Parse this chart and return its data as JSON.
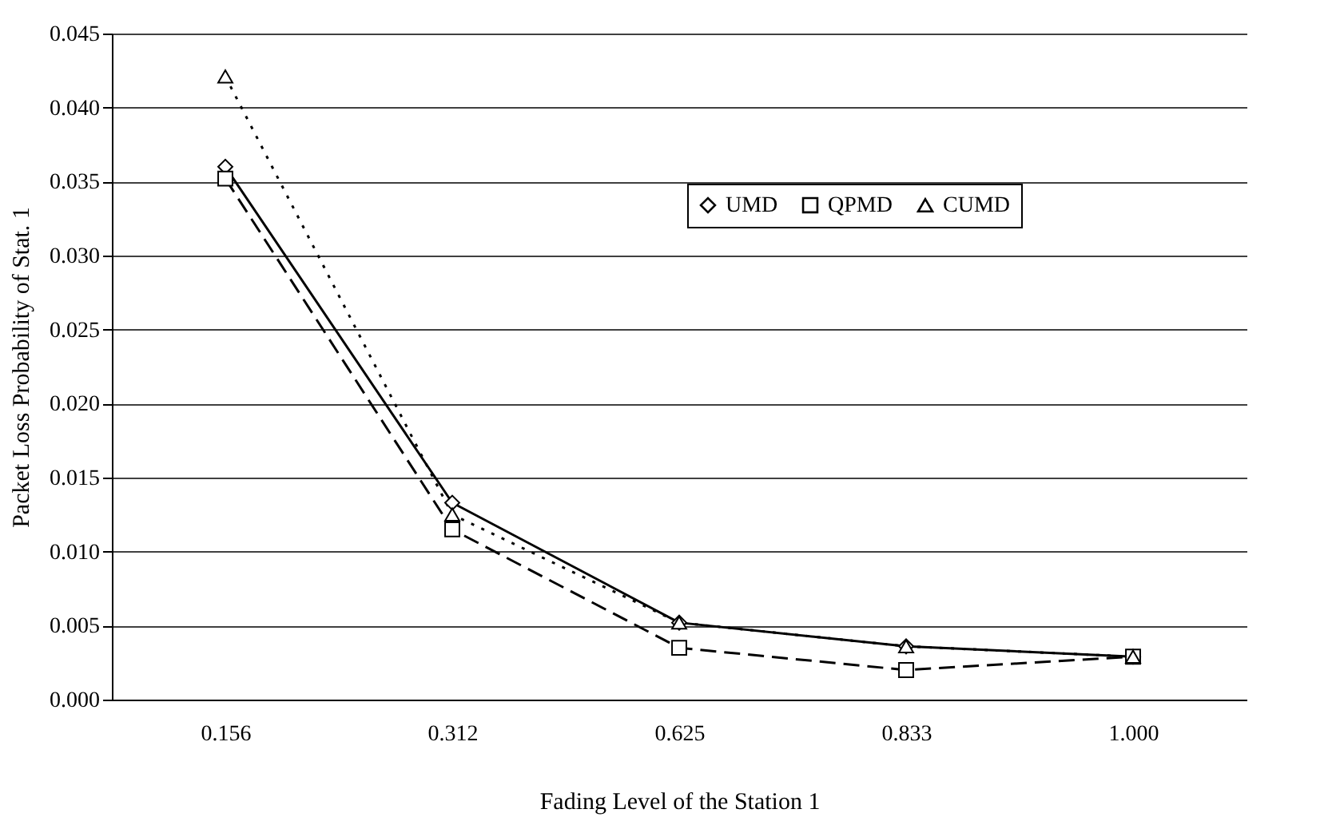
{
  "chart_data": {
    "type": "line",
    "xlabel": "Fading Level of the Station 1",
    "ylabel": "Packet Loss Probability of Stat. 1",
    "categories": [
      "0.156",
      "0.312",
      "0.625",
      "0.833",
      "1.000"
    ],
    "series": [
      {
        "name": "UMD",
        "color": "#000000",
        "marker": "diamond",
        "line_style": "solid",
        "values": [
          0.036,
          0.0133,
          0.0052,
          0.0036,
          0.0029
        ]
      },
      {
        "name": "QPMD",
        "color": "#000000",
        "marker": "square",
        "line_style": "dashed",
        "values": [
          0.0352,
          0.0115,
          0.0035,
          0.002,
          0.0029
        ]
      },
      {
        "name": "CUMD",
        "color": "#000000",
        "marker": "triangle",
        "line_style": "dotted",
        "values": [
          0.0421,
          0.0125,
          0.0052,
          0.0036,
          0.0029
        ]
      }
    ],
    "ylim": [
      0,
      0.045
    ],
    "yticks": [
      {
        "value": 0,
        "label": "0.000"
      },
      {
        "value": 0.005,
        "label": "0.005"
      },
      {
        "value": 0.01,
        "label": "0.010"
      },
      {
        "value": 0.015,
        "label": "0.015"
      },
      {
        "value": 0.02,
        "label": "0.020"
      },
      {
        "value": 0.025,
        "label": "0.025"
      },
      {
        "value": 0.03,
        "label": "0.030"
      },
      {
        "value": 0.035,
        "label": "0.035"
      },
      {
        "value": 0.04,
        "label": "0.040"
      },
      {
        "value": 0.045,
        "label": "0.045"
      }
    ],
    "grid": "y",
    "legend": "top right"
  }
}
